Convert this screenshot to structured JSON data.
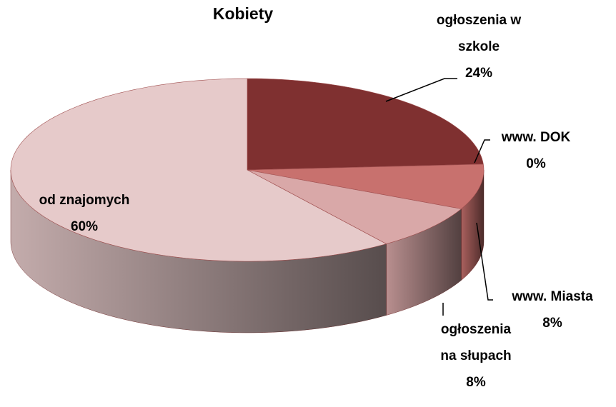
{
  "chart_data": {
    "type": "pie",
    "title": "Kobiety",
    "categories": [
      "ogłoszenia w szkole",
      "www. DOK",
      "www. Miasta",
      "ogłoszenia na słupach",
      "od znajomych"
    ],
    "values": [
      24,
      0,
      8,
      8,
      60
    ],
    "value_labels": [
      "24%",
      "0%",
      "8%",
      "8%",
      "60%"
    ],
    "colors": [
      "#7f3030",
      "#a04848",
      "#c8716e",
      "#d9a8a8",
      "#e6caca"
    ]
  }
}
